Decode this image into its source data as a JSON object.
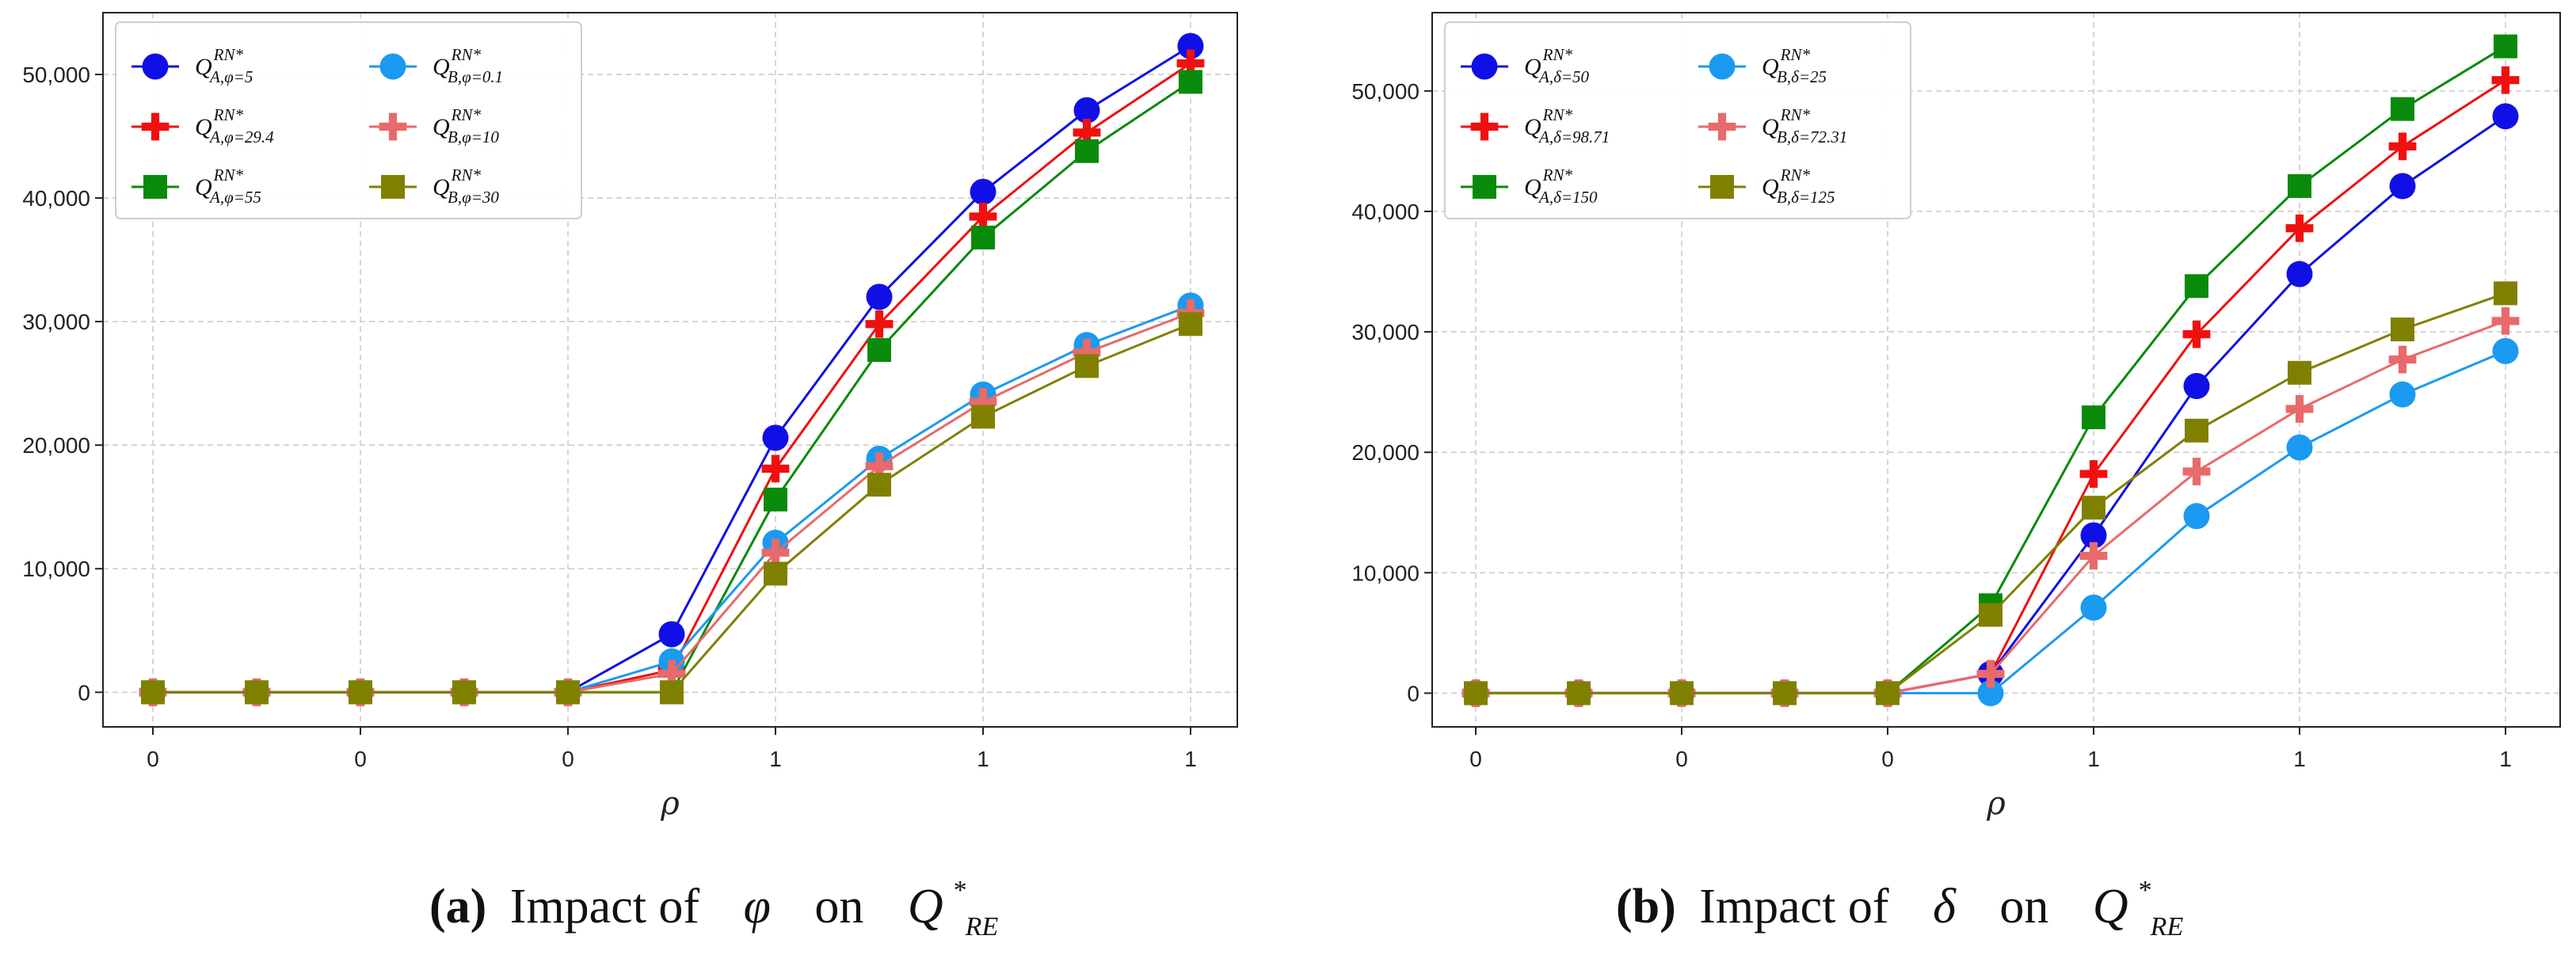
{
  "charts": [
    {
      "caption": {
        "letter": "(a)",
        "text_before": "Impact of",
        "symbol": "φ",
        "text_mid": "on",
        "qty": "Q",
        "qty_sup": "*",
        "qty_sub": "RE"
      },
      "xlabel": "ρ",
      "x_ticks": [
        "0",
        "0",
        "0",
        "1",
        "1",
        "1"
      ],
      "y_ticks": [
        "0",
        "10,000",
        "20,000",
        "30,000",
        "40,000",
        "50,000"
      ]
    },
    {
      "caption": {
        "letter": "(b)",
        "text_before": "Impact of",
        "symbol": "δ",
        "text_mid": "on",
        "qty": "Q",
        "qty_sup": "*",
        "qty_sub": "RE"
      },
      "xlabel": "ρ",
      "x_ticks": [
        "0",
        "0",
        "0",
        "1",
        "1",
        "1"
      ],
      "y_ticks": [
        "0",
        "10,000",
        "20,000",
        "30,000",
        "40,000",
        "50,000"
      ]
    }
  ],
  "chart_data": [
    {
      "type": "line",
      "xlabel": "ρ",
      "ylabel": "",
      "ylim": [
        -2800,
        55000
      ],
      "x": [
        0,
        1,
        2,
        3,
        4,
        5,
        6,
        7,
        8,
        9,
        10
      ],
      "x_tick_labels": [
        "0",
        "0",
        "0",
        "1",
        "1",
        "1"
      ],
      "grid": true,
      "legend_position": "top-left",
      "series": [
        {
          "name": "Q_{A,φ=5}^{RN*}",
          "sub": "A,φ=5",
          "color": "#1010e6",
          "marker": "circle",
          "values": [
            0,
            0,
            0,
            0,
            0,
            4700,
            20600,
            32000,
            40500,
            47100,
            52300
          ]
        },
        {
          "name": "Q_{A,φ=29.4}^{RN*}",
          "sub": "A,φ=29.4",
          "color": "#f01010",
          "marker": "plus",
          "values": [
            0,
            0,
            0,
            0,
            0,
            1800,
            18100,
            29800,
            38500,
            45300,
            50900
          ]
        },
        {
          "name": "Q_{A,φ=55}^{RN*}",
          "sub": "A,φ=55",
          "color": "#0a8a0a",
          "marker": "square",
          "values": [
            0,
            0,
            0,
            0,
            0,
            0,
            15600,
            27700,
            36800,
            43800,
            49400
          ]
        },
        {
          "name": "Q_{B,φ=0.1}^{RN*}",
          "sub": "B,φ=0.1",
          "color": "#1a9af0",
          "marker": "circle",
          "values": [
            0,
            0,
            0,
            0,
            0,
            2500,
            12100,
            18900,
            24100,
            28100,
            31300
          ]
        },
        {
          "name": "Q_{B,φ=10}^{RN*}",
          "sub": "B,φ=10",
          "color": "#e86a6a",
          "marker": "plus",
          "values": [
            0,
            0,
            0,
            0,
            0,
            1500,
            11300,
            18300,
            23500,
            27500,
            30700
          ]
        },
        {
          "name": "Q_{B,φ=30}^{RN*}",
          "sub": "B,φ=30",
          "color": "#808000",
          "marker": "square",
          "values": [
            0,
            0,
            0,
            0,
            0,
            0,
            9600,
            16800,
            22300,
            26400,
            29800
          ]
        }
      ]
    },
    {
      "type": "line",
      "xlabel": "ρ",
      "ylabel": "",
      "ylim": [
        -2800,
        56500
      ],
      "x": [
        0,
        1,
        2,
        3,
        4,
        5,
        6,
        7,
        8,
        9,
        10
      ],
      "x_tick_labels": [
        "0",
        "0",
        "0",
        "1",
        "1",
        "1"
      ],
      "grid": true,
      "legend_position": "top-left",
      "series": [
        {
          "name": "Q_{A,δ=50}^{RN*}",
          "sub": "A,δ=50",
          "color": "#1010e6",
          "marker": "circle",
          "values": [
            0,
            0,
            0,
            0,
            0,
            1600,
            13100,
            25500,
            34800,
            42100,
            47900
          ]
        },
        {
          "name": "Q_{A,δ=98.71}^{RN*}",
          "sub": "A,δ=98.71",
          "color": "#f01010",
          "marker": "plus",
          "values": [
            0,
            0,
            0,
            0,
            0,
            1600,
            18200,
            29800,
            38600,
            45400,
            50900
          ]
        },
        {
          "name": "Q_{A,δ=150}^{RN*}",
          "sub": "A,δ=150",
          "color": "#0a8a0a",
          "marker": "square",
          "values": [
            0,
            0,
            0,
            0,
            0,
            7300,
            22900,
            33800,
            42100,
            48500,
            53700
          ]
        },
        {
          "name": "Q_{B,δ=25}^{RN*}",
          "sub": "B,δ=25",
          "color": "#1a9af0",
          "marker": "circle",
          "values": [
            0,
            0,
            0,
            0,
            0,
            0,
            7100,
            14700,
            20400,
            24800,
            28400
          ]
        },
        {
          "name": "Q_{B,δ=72.31}^{RN*}",
          "sub": "B,δ=72.31",
          "color": "#e86a6a",
          "marker": "plus",
          "values": [
            0,
            0,
            0,
            0,
            0,
            1600,
            11400,
            18400,
            23600,
            27700,
            30900
          ]
        },
        {
          "name": "Q_{B,δ=125}^{RN*}",
          "sub": "B,δ=125",
          "color": "#808000",
          "marker": "square",
          "values": [
            0,
            0,
            0,
            0,
            0,
            6500,
            15400,
            21800,
            26600,
            30200,
            33200
          ]
        }
      ]
    }
  ]
}
